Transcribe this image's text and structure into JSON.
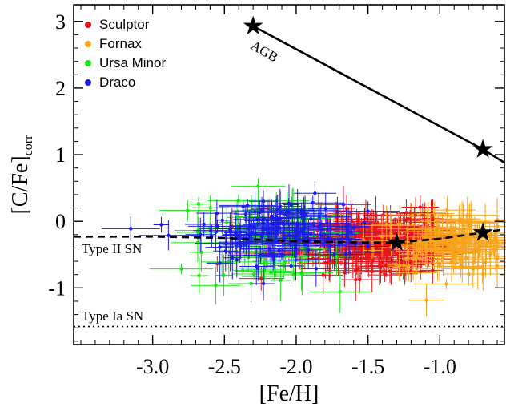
{
  "chart_data": {
    "type": "scatter",
    "title": "",
    "xlabel": "[Fe/H]",
    "ylabel_main": "[C/Fe]",
    "ylabel_sub": "corr",
    "xlim": [
      -3.55,
      -0.55
    ],
    "ylim": [
      -1.85,
      3.25
    ],
    "x_ticks": [
      -3.0,
      -2.5,
      -2.0,
      -1.5,
      -1.0
    ],
    "x_tick_labels": [
      "-3.0",
      "-2.5",
      "-2.0",
      "-1.5",
      "-1.0"
    ],
    "y_ticks": [
      -1,
      0,
      1,
      2,
      3
    ],
    "y_tick_labels": [
      "-1",
      "0",
      "1",
      "2",
      "3"
    ],
    "legend_position": "top-left",
    "series": [
      {
        "name": "Sculptor",
        "color": "#e8141c",
        "center_x": -1.45,
        "spread_x": 0.35,
        "center_y": -0.3,
        "spread_y": 0.22,
        "count": 320,
        "min_x": -2.55,
        "max_x": -1.05
      },
      {
        "name": "Fornax",
        "color": "#f7a41c",
        "center_x": -0.95,
        "spread_x": 0.25,
        "center_y": -0.3,
        "spread_y": 0.22,
        "count": 150,
        "min_x": -1.55,
        "max_x": -0.6
      },
      {
        "name": "Ursa Minor",
        "color": "#18e418",
        "center_x": -2.2,
        "spread_x": 0.25,
        "center_y": -0.3,
        "spread_y": 0.35,
        "count": 90,
        "min_x": -2.8,
        "max_x": -1.6
      },
      {
        "name": "Draco",
        "color": "#1c1ce8",
        "center_x": -2.1,
        "spread_x": 0.28,
        "center_y": -0.15,
        "spread_y": 0.25,
        "count": 160,
        "min_x": -3.25,
        "max_x": -1.5
      }
    ],
    "models": [
      {
        "label": "AGB",
        "style": "solid",
        "x": [
          -2.3,
          -0.7,
          -0.55
        ],
        "y": [
          2.93,
          1.08,
          0.88
        ],
        "markers": [
          [
            -2.3,
            2.93
          ],
          [
            -0.7,
            1.08
          ]
        ]
      },
      {
        "label": "Type II SN",
        "style": "dashed",
        "x": [
          -3.55,
          -3.0,
          -2.5,
          -2.0,
          -1.5,
          -1.3,
          -1.0,
          -0.7,
          -0.55
        ],
        "y": [
          -0.23,
          -0.23,
          -0.25,
          -0.3,
          -0.32,
          -0.32,
          -0.26,
          -0.17,
          -0.12
        ],
        "markers": [
          [
            -1.3,
            -0.32
          ],
          [
            -0.7,
            -0.17
          ]
        ]
      },
      {
        "label": "Type Ia SN",
        "style": "dotted",
        "x": [
          -3.55,
          -0.55
        ],
        "y": [
          -1.58,
          -1.58
        ],
        "markers": []
      }
    ]
  }
}
